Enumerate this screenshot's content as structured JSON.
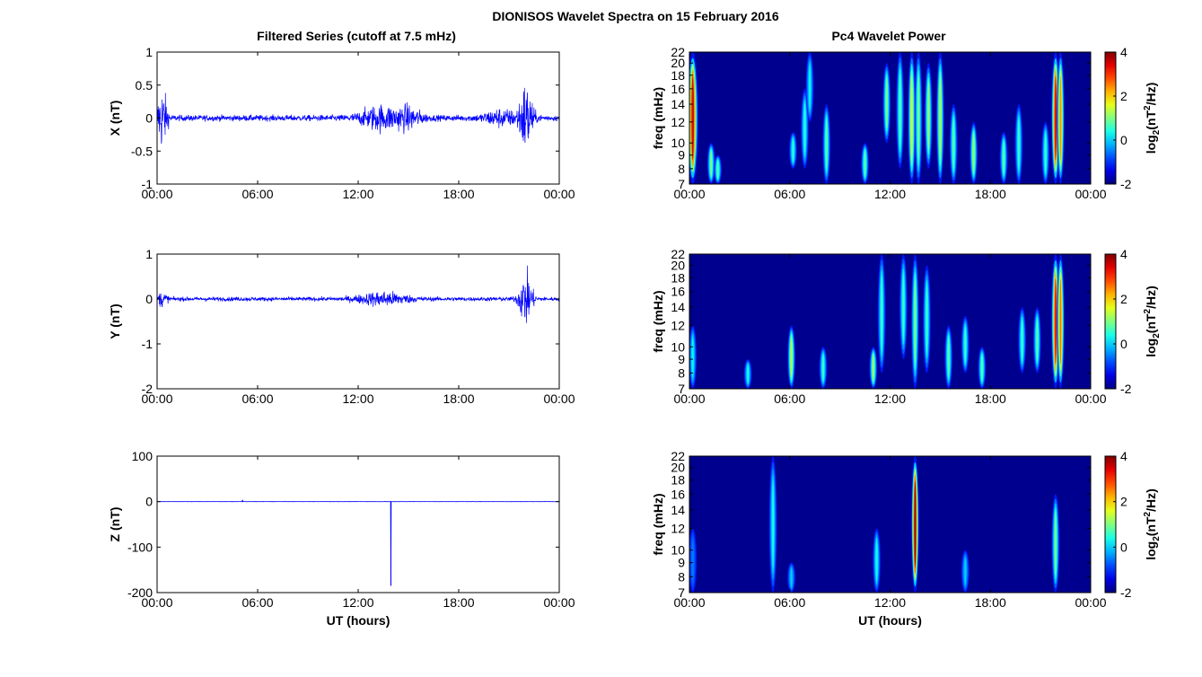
{
  "figure": {
    "title": "DIONISOS Wavelet Spectra on 15 February 2016",
    "left_column_title": "Filtered Series (cutoff at 7.5 mHz)",
    "right_column_title": "Pc4 Wavelet Power"
  },
  "colors": {
    "trace": "#0000ff",
    "spectrogram_background": "#00008f",
    "colormap": "jet"
  },
  "chart_data": [
    {
      "id": "x-series",
      "type": "line",
      "ylabel": "X (nT)",
      "xlabel": "",
      "ylim": [
        -1,
        1
      ],
      "yticks": [
        1,
        0.5,
        0,
        -0.5,
        -1
      ],
      "ytick_labels": [
        "1",
        "0.5",
        "0",
        "-0.5",
        "-1"
      ],
      "xlim": [
        0,
        24
      ],
      "xticks": [
        0,
        6,
        12,
        18,
        24
      ],
      "xtick_labels": [
        "00:00",
        "06:00",
        "12:00",
        "18:00",
        "00:00"
      ],
      "grid": false,
      "noise": {
        "base_amplitude": 0.08,
        "bursts": [
          {
            "t": 0.3,
            "width": 0.3,
            "amplitude": 0.8
          },
          {
            "t": 13.3,
            "width": 1.2,
            "amplitude": 0.3
          },
          {
            "t": 15.0,
            "width": 0.8,
            "amplitude": 0.25
          },
          {
            "t": 20.5,
            "width": 1.0,
            "amplitude": 0.2
          },
          {
            "t": 22.0,
            "width": 0.4,
            "amplitude": 0.9
          }
        ]
      }
    },
    {
      "id": "y-series",
      "type": "line",
      "ylabel": "Y (nT)",
      "xlabel": "",
      "ylim": [
        -2,
        1
      ],
      "yticks": [
        1,
        0,
        -1,
        -2
      ],
      "ytick_labels": [
        "1",
        "0",
        "-1",
        "-2"
      ],
      "xlim": [
        0,
        24
      ],
      "xticks": [
        0,
        6,
        12,
        18,
        24
      ],
      "xtick_labels": [
        "00:00",
        "06:00",
        "12:00",
        "18:00",
        "00:00"
      ],
      "grid": false,
      "noise": {
        "base_amplitude": 0.08,
        "bursts": [
          {
            "t": 0.3,
            "width": 0.3,
            "amplitude": 0.25
          },
          {
            "t": 13.5,
            "width": 1.5,
            "amplitude": 0.25
          },
          {
            "t": 22.0,
            "width": 0.4,
            "amplitude": 1.0
          }
        ]
      }
    },
    {
      "id": "z-series",
      "type": "line",
      "ylabel": "Z (nT)",
      "xlabel": "UT (hours)",
      "ylim": [
        -200,
        100
      ],
      "yticks": [
        100,
        0,
        -100,
        -200
      ],
      "ytick_labels": [
        "100",
        "0",
        "-100",
        "-200"
      ],
      "xlim": [
        0,
        24
      ],
      "xticks": [
        0,
        6,
        12,
        18,
        24
      ],
      "xtick_labels": [
        "00:00",
        "06:00",
        "12:00",
        "18:00",
        "00:00"
      ],
      "grid": false,
      "noise": {
        "base_amplitude": 0.5,
        "bursts": []
      },
      "spikes": [
        {
          "t": 13.95,
          "value": -185
        },
        {
          "t": 5.1,
          "value": 3
        }
      ]
    },
    {
      "id": "x-wavelet",
      "type": "heatmap",
      "ylabel": "freq (mHz)",
      "xlabel": "",
      "xlim": [
        0,
        24
      ],
      "xticks": [
        0,
        6,
        12,
        18,
        24
      ],
      "xtick_labels": [
        "00:00",
        "06:00",
        "12:00",
        "18:00",
        "00:00"
      ],
      "ylim": [
        7,
        22
      ],
      "yscale": "log",
      "yticks": [
        7,
        8,
        9,
        10,
        12,
        14,
        16,
        18,
        20,
        22
      ],
      "ytick_labels": [
        "7",
        "8",
        "9",
        "10",
        "12",
        "14",
        "16",
        "18",
        "20",
        "22"
      ],
      "colorbar": {
        "label": "log2(nT2/Hz)",
        "limits": [
          -2,
          4
        ],
        "ticks": [
          "4",
          "2",
          "0",
          "-2"
        ]
      },
      "streaks": [
        {
          "t": 0.2,
          "f_lo": 7,
          "f_hi": 22,
          "peak": 3.5,
          "width": 0.15
        },
        {
          "t": 1.3,
          "f_lo": 7,
          "f_hi": 10,
          "peak": 1.0,
          "width": 0.05
        },
        {
          "t": 1.7,
          "f_lo": 7,
          "f_hi": 9,
          "peak": 0.8,
          "width": 0.05
        },
        {
          "t": 6.2,
          "f_lo": 8,
          "f_hi": 11,
          "peak": 0.5,
          "width": 0.05
        },
        {
          "t": 6.9,
          "f_lo": 8,
          "f_hi": 16,
          "peak": 0.5,
          "width": 0.05
        },
        {
          "t": 7.2,
          "f_lo": 12,
          "f_hi": 22,
          "peak": 0.3,
          "width": 0.05
        },
        {
          "t": 8.2,
          "f_lo": 7,
          "f_hi": 14,
          "peak": 0.8,
          "width": 0.05
        },
        {
          "t": 10.5,
          "f_lo": 7,
          "f_hi": 10,
          "peak": 0.8,
          "width": 0.05
        },
        {
          "t": 11.8,
          "f_lo": 10,
          "f_hi": 20,
          "peak": 1.0,
          "width": 0.05
        },
        {
          "t": 12.6,
          "f_lo": 8,
          "f_hi": 22,
          "peak": 0.8,
          "width": 0.05
        },
        {
          "t": 13.3,
          "f_lo": 7,
          "f_hi": 22,
          "peak": 1.6,
          "width": 0.08
        },
        {
          "t": 13.7,
          "f_lo": 7,
          "f_hi": 22,
          "peak": 1.0,
          "width": 0.06
        },
        {
          "t": 14.3,
          "f_lo": 8,
          "f_hi": 20,
          "peak": 1.2,
          "width": 0.06
        },
        {
          "t": 15.0,
          "f_lo": 7,
          "f_hi": 22,
          "peak": 1.4,
          "width": 0.06
        },
        {
          "t": 15.8,
          "f_lo": 7,
          "f_hi": 14,
          "peak": 0.8,
          "width": 0.05
        },
        {
          "t": 17.0,
          "f_lo": 7,
          "f_hi": 12,
          "peak": 1.2,
          "width": 0.06
        },
        {
          "t": 18.8,
          "f_lo": 7,
          "f_hi": 11,
          "peak": 0.8,
          "width": 0.05
        },
        {
          "t": 19.7,
          "f_lo": 7,
          "f_hi": 14,
          "peak": 0.6,
          "width": 0.05
        },
        {
          "t": 21.3,
          "f_lo": 7,
          "f_hi": 12,
          "peak": 0.6,
          "width": 0.05
        },
        {
          "t": 21.9,
          "f_lo": 7,
          "f_hi": 22,
          "peak": 3.4,
          "width": 0.12
        },
        {
          "t": 22.2,
          "f_lo": 7,
          "f_hi": 22,
          "peak": 2.4,
          "width": 0.08
        }
      ]
    },
    {
      "id": "y-wavelet",
      "type": "heatmap",
      "ylabel": "freq (mHz)",
      "xlabel": "",
      "xlim": [
        0,
        24
      ],
      "xticks": [
        0,
        6,
        12,
        18,
        24
      ],
      "xtick_labels": [
        "00:00",
        "06:00",
        "12:00",
        "18:00",
        "00:00"
      ],
      "ylim": [
        7,
        22
      ],
      "yscale": "log",
      "yticks": [
        7,
        8,
        9,
        10,
        12,
        14,
        16,
        18,
        20,
        22
      ],
      "ytick_labels": [
        "7",
        "8",
        "9",
        "10",
        "12",
        "14",
        "16",
        "18",
        "20",
        "22"
      ],
      "colorbar": {
        "label": "log2(nT2/Hz)",
        "limits": [
          -2,
          4
        ],
        "ticks": [
          "4",
          "2",
          "0",
          "-2"
        ]
      },
      "streaks": [
        {
          "t": 0.2,
          "f_lo": 7,
          "f_hi": 12,
          "peak": 0.3,
          "width": 0.05
        },
        {
          "t": 3.5,
          "f_lo": 7,
          "f_hi": 9,
          "peak": 0.4,
          "width": 0.05
        },
        {
          "t": 6.1,
          "f_lo": 7,
          "f_hi": 12,
          "peak": 1.4,
          "width": 0.06
        },
        {
          "t": 8.0,
          "f_lo": 7,
          "f_hi": 10,
          "peak": 0.6,
          "width": 0.05
        },
        {
          "t": 11.0,
          "f_lo": 7,
          "f_hi": 10,
          "peak": 1.2,
          "width": 0.06
        },
        {
          "t": 11.5,
          "f_lo": 8,
          "f_hi": 22,
          "peak": 0.6,
          "width": 0.05
        },
        {
          "t": 12.8,
          "f_lo": 9,
          "f_hi": 22,
          "peak": 0.6,
          "width": 0.05
        },
        {
          "t": 13.5,
          "f_lo": 7,
          "f_hi": 22,
          "peak": 1.0,
          "width": 0.06
        },
        {
          "t": 14.2,
          "f_lo": 8,
          "f_hi": 20,
          "peak": 0.6,
          "width": 0.05
        },
        {
          "t": 15.5,
          "f_lo": 7,
          "f_hi": 12,
          "peak": 0.8,
          "width": 0.05
        },
        {
          "t": 16.5,
          "f_lo": 8,
          "f_hi": 13,
          "peak": 0.6,
          "width": 0.05
        },
        {
          "t": 17.5,
          "f_lo": 7,
          "f_hi": 10,
          "peak": 0.8,
          "width": 0.05
        },
        {
          "t": 19.9,
          "f_lo": 8,
          "f_hi": 14,
          "peak": 0.6,
          "width": 0.05
        },
        {
          "t": 20.8,
          "f_lo": 8,
          "f_hi": 14,
          "peak": 0.8,
          "width": 0.05
        },
        {
          "t": 21.9,
          "f_lo": 7,
          "f_hi": 22,
          "peak": 3.2,
          "width": 0.12
        },
        {
          "t": 22.2,
          "f_lo": 7,
          "f_hi": 22,
          "peak": 2.6,
          "width": 0.08
        }
      ]
    },
    {
      "id": "z-wavelet",
      "type": "heatmap",
      "ylabel": "freq (mHz)",
      "xlabel": "UT (hours)",
      "xlim": [
        0,
        24
      ],
      "xticks": [
        0,
        6,
        12,
        18,
        24
      ],
      "xtick_labels": [
        "00:00",
        "06:00",
        "12:00",
        "18:00",
        "00:00"
      ],
      "ylim": [
        7,
        22
      ],
      "yscale": "log",
      "yticks": [
        7,
        8,
        9,
        10,
        12,
        14,
        16,
        18,
        20,
        22
      ],
      "ytick_labels": [
        "7",
        "8",
        "9",
        "10",
        "12",
        "14",
        "16",
        "18",
        "20",
        "22"
      ],
      "colorbar": {
        "label": "log2(nT2/Hz)",
        "limits": [
          -2,
          4
        ],
        "ticks": [
          "4",
          "2",
          "0",
          "-2"
        ]
      },
      "streaks": [
        {
          "t": 0.2,
          "f_lo": 7,
          "f_hi": 12,
          "peak": -0.5,
          "width": 0.05
        },
        {
          "t": 5.0,
          "f_lo": 7,
          "f_hi": 22,
          "peak": 0.4,
          "width": 0.05
        },
        {
          "t": 6.1,
          "f_lo": 7,
          "f_hi": 9,
          "peak": 0.0,
          "width": 0.05
        },
        {
          "t": 11.2,
          "f_lo": 7,
          "f_hi": 12,
          "peak": 0.4,
          "width": 0.05
        },
        {
          "t": 13.5,
          "f_lo": 7,
          "f_hi": 22,
          "peak": 3.9,
          "width": 0.05
        },
        {
          "t": 16.5,
          "f_lo": 7,
          "f_hi": 10,
          "peak": 0.0,
          "width": 0.05
        },
        {
          "t": 21.9,
          "f_lo": 7,
          "f_hi": 16,
          "peak": 1.0,
          "width": 0.08
        }
      ]
    }
  ]
}
